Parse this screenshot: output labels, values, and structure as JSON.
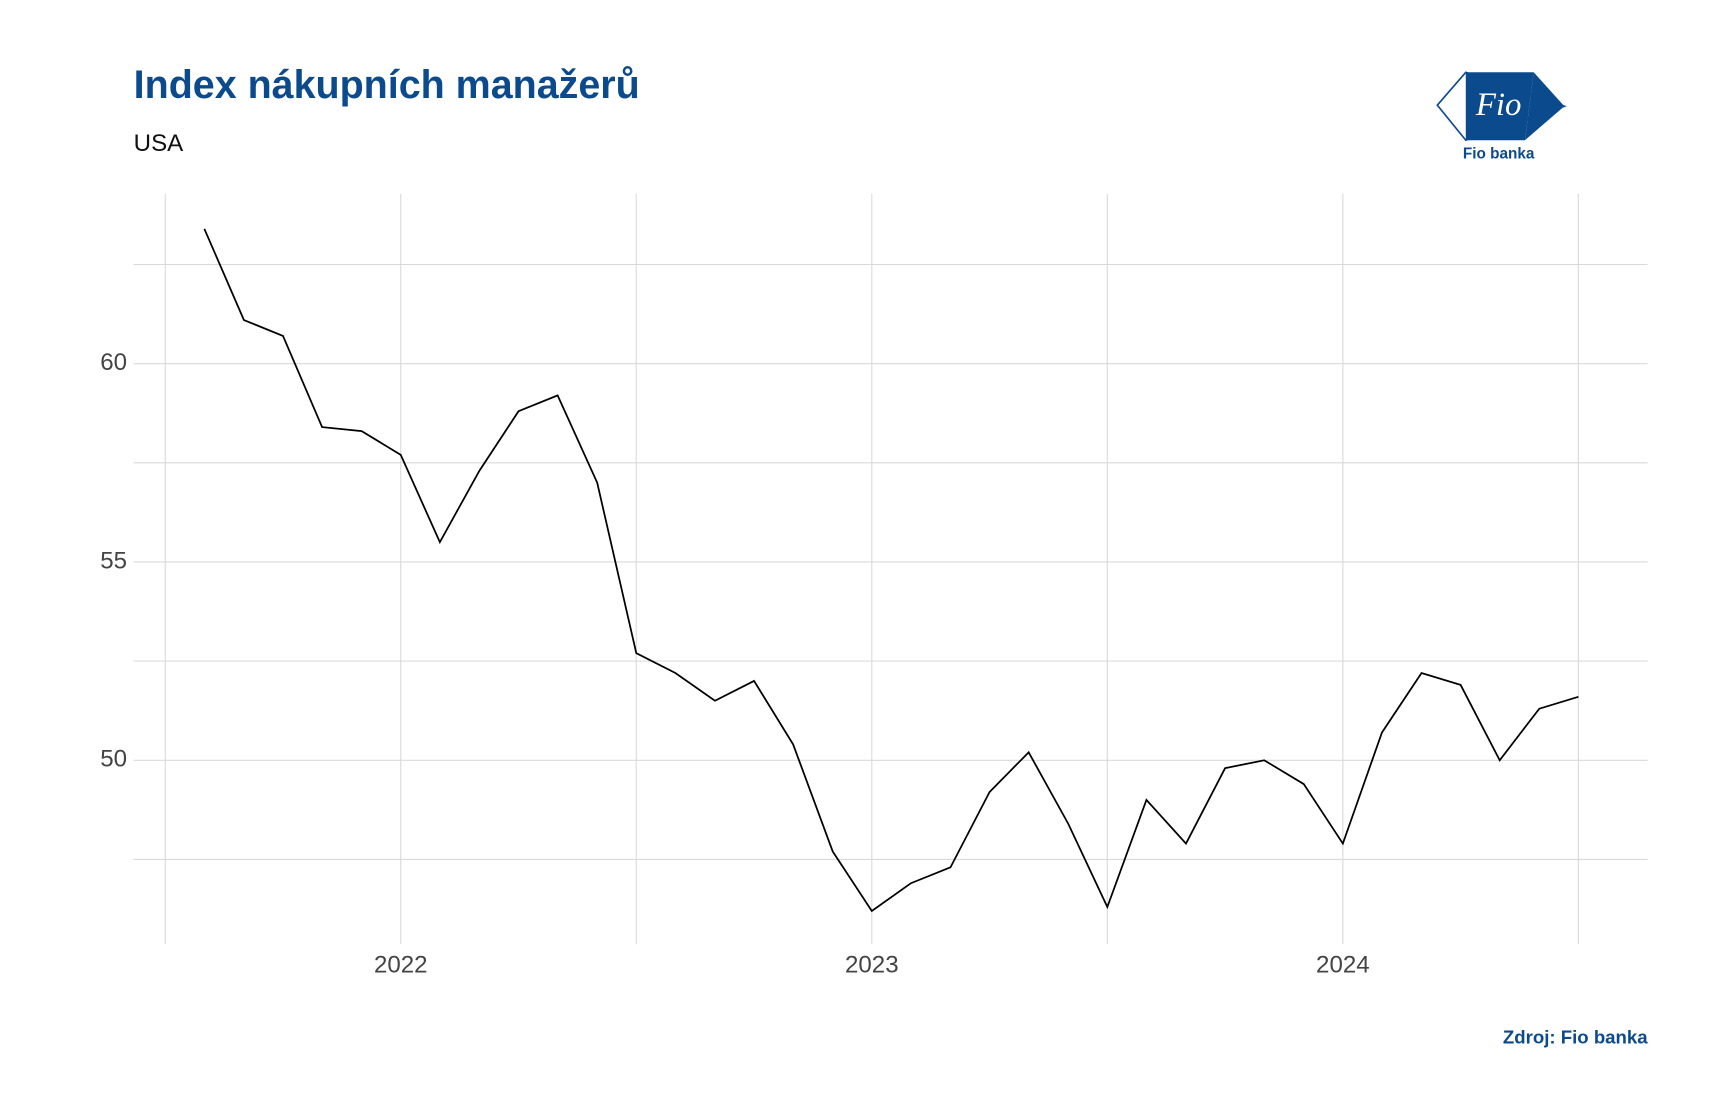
{
  "chart_data": {
    "type": "line",
    "title": "Index nákupních manažerů",
    "subtitle": "USA",
    "source": "Zdroj: Fio banka",
    "x": [
      2021.583,
      2021.667,
      2021.75,
      2021.833,
      2021.917,
      2022,
      2022.083,
      2022.167,
      2022.25,
      2022.333,
      2022.417,
      2022.5,
      2022.583,
      2022.667,
      2022.75,
      2022.833,
      2022.917,
      2023,
      2023.083,
      2023.167,
      2023.25,
      2023.333,
      2023.417,
      2023.5,
      2023.583,
      2023.667,
      2023.75,
      2023.833,
      2023.917,
      2024,
      2024.083,
      2024.167,
      2024.25,
      2024.333,
      2024.417,
      2024.5
    ],
    "series": [
      {
        "color": "#000000",
        "values": [
          63.4,
          61.1,
          60.7,
          58.4,
          58.3,
          57.7,
          55.5,
          57.3,
          58.8,
          59.2,
          57.0,
          52.7,
          52.2,
          51.5,
          52.0,
          50.4,
          47.7,
          46.2,
          46.9,
          47.3,
          49.2,
          50.2,
          48.4,
          46.3,
          49.0,
          47.9,
          49.8,
          50.0,
          49.4,
          47.9,
          50.7,
          52.2,
          51.9,
          50.0,
          51.3,
          51.6
        ]
      }
    ],
    "xlim": [
      2021.433,
      2024.647
    ],
    "xticks": [
      2022,
      2023,
      2024
    ],
    "xminor": [
      2021.5,
      2022.5,
      2023.5,
      2024.5
    ],
    "ylim": [
      45.36,
      64.28
    ],
    "yticks": [
      50,
      55,
      60
    ],
    "yminor": [
      47.5,
      52.5,
      57.5,
      62.5
    ],
    "grid": true
  },
  "logo": {
    "mark": "Fio",
    "name": "Fio banka"
  }
}
